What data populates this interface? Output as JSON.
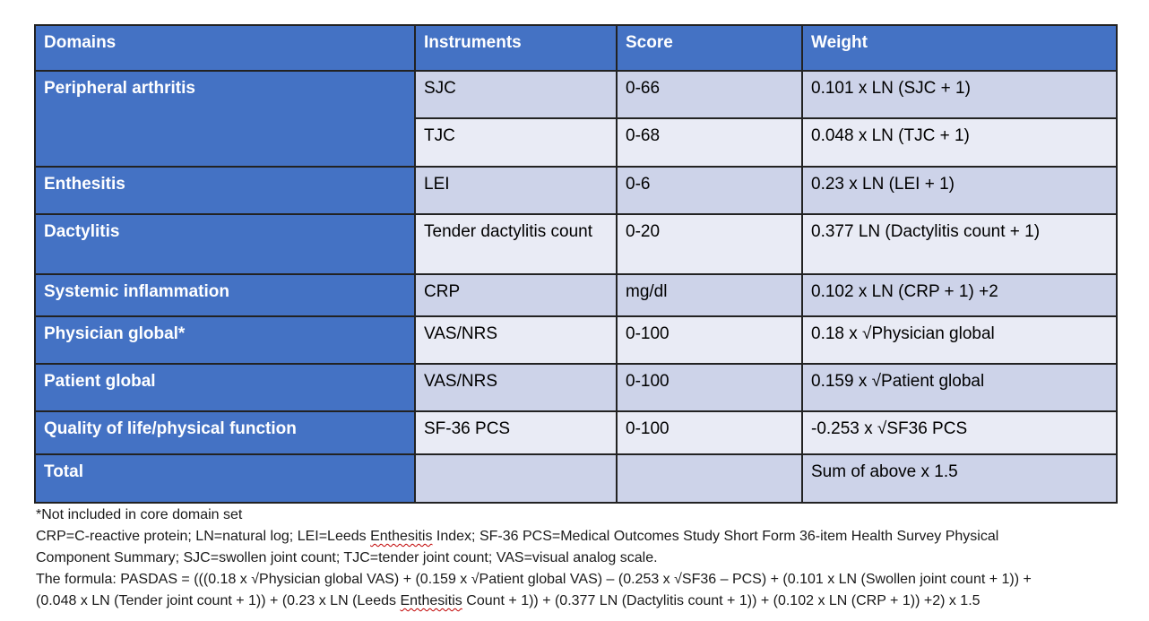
{
  "colors": {
    "header_bg": "#4472C4",
    "band_dark": "#CDD3E9",
    "band_light": "#E9EBF5",
    "border": "#222222",
    "header_text": "#FFFFFF",
    "body_text": "#000000",
    "squiggle": "#C00000"
  },
  "table": {
    "columns": [
      {
        "key": "domain",
        "label": "Domains"
      },
      {
        "key": "instrument",
        "label": "Instruments"
      },
      {
        "key": "score",
        "label": "Score"
      },
      {
        "key": "weight",
        "label": "Weight"
      }
    ],
    "rows": [
      {
        "domain": "Peripheral arthritis",
        "domain_rowspan": 2,
        "instrument": "SJC",
        "score": "0-66",
        "weight": "0.101 x LN (SJC + 1)"
      },
      {
        "instrument": "TJC",
        "score": "0-68",
        "weight": "0.048 x LN (TJC + 1)"
      },
      {
        "domain": "Enthesitis",
        "instrument": "LEI",
        "score": "0-6",
        "weight": "0.23 x LN (LEI + 1)"
      },
      {
        "domain": "Dactylitis",
        "instrument": "Tender dactylitis count",
        "score": "0-20",
        "weight": "0.377 LN (Dactylitis count + 1)"
      },
      {
        "domain": "Systemic inflammation",
        "instrument": "CRP",
        "score": "mg/dl",
        "weight": "0.102 x LN (CRP + 1) +2"
      },
      {
        "domain": "Physician global*",
        "instrument": "VAS/NRS",
        "score": "0-100",
        "weight": "0.18 x √Physician global"
      },
      {
        "domain": "Patient global",
        "instrument": "VAS/NRS",
        "score": "0-100",
        "weight": "0.159 x √Patient global"
      },
      {
        "domain": "Quality of life/physical function",
        "instrument": "SF-36 PCS",
        "score": "0-100",
        "weight": "-0.253 x √SF36 PCS"
      },
      {
        "domain": "Total",
        "total_row": true,
        "instrument": "",
        "score": "",
        "weight": "Sum of above x 1.5"
      }
    ]
  },
  "footnotes": {
    "lines": [
      [
        {
          "text": "*Not included in core domain set"
        }
      ],
      [
        {
          "text": "CRP=C-reactive protein; LN=natural log; LEI=Leeds "
        },
        {
          "text": "Enthesitis",
          "misspelled": true
        },
        {
          "text": " Index; SF-36 PCS=Medical Outcomes Study Short Form 36-item Health Survey Physical"
        }
      ],
      [
        {
          "text": "Component Summary; SJC=swollen joint count; TJC=tender joint count; VAS=visual analog scale."
        }
      ],
      [
        {
          "text": "The formula: PASDAS = (((0.18 x √Physician global VAS) + (0.159 x √Patient global VAS) – (0.253 x √SF36 – PCS) + (0.101 x LN (Swollen joint count + 1)) +"
        }
      ],
      [
        {
          "text": "(0.048 x LN (Tender joint count + 1)) + (0.23 x LN (Leeds "
        },
        {
          "text": "Enthesitis",
          "misspelled": true
        },
        {
          "text": " Count + 1)) + (0.377 LN (Dactylitis count + 1)) + (0.102 x LN (CRP + 1)) +2) x 1.5"
        }
      ]
    ]
  }
}
